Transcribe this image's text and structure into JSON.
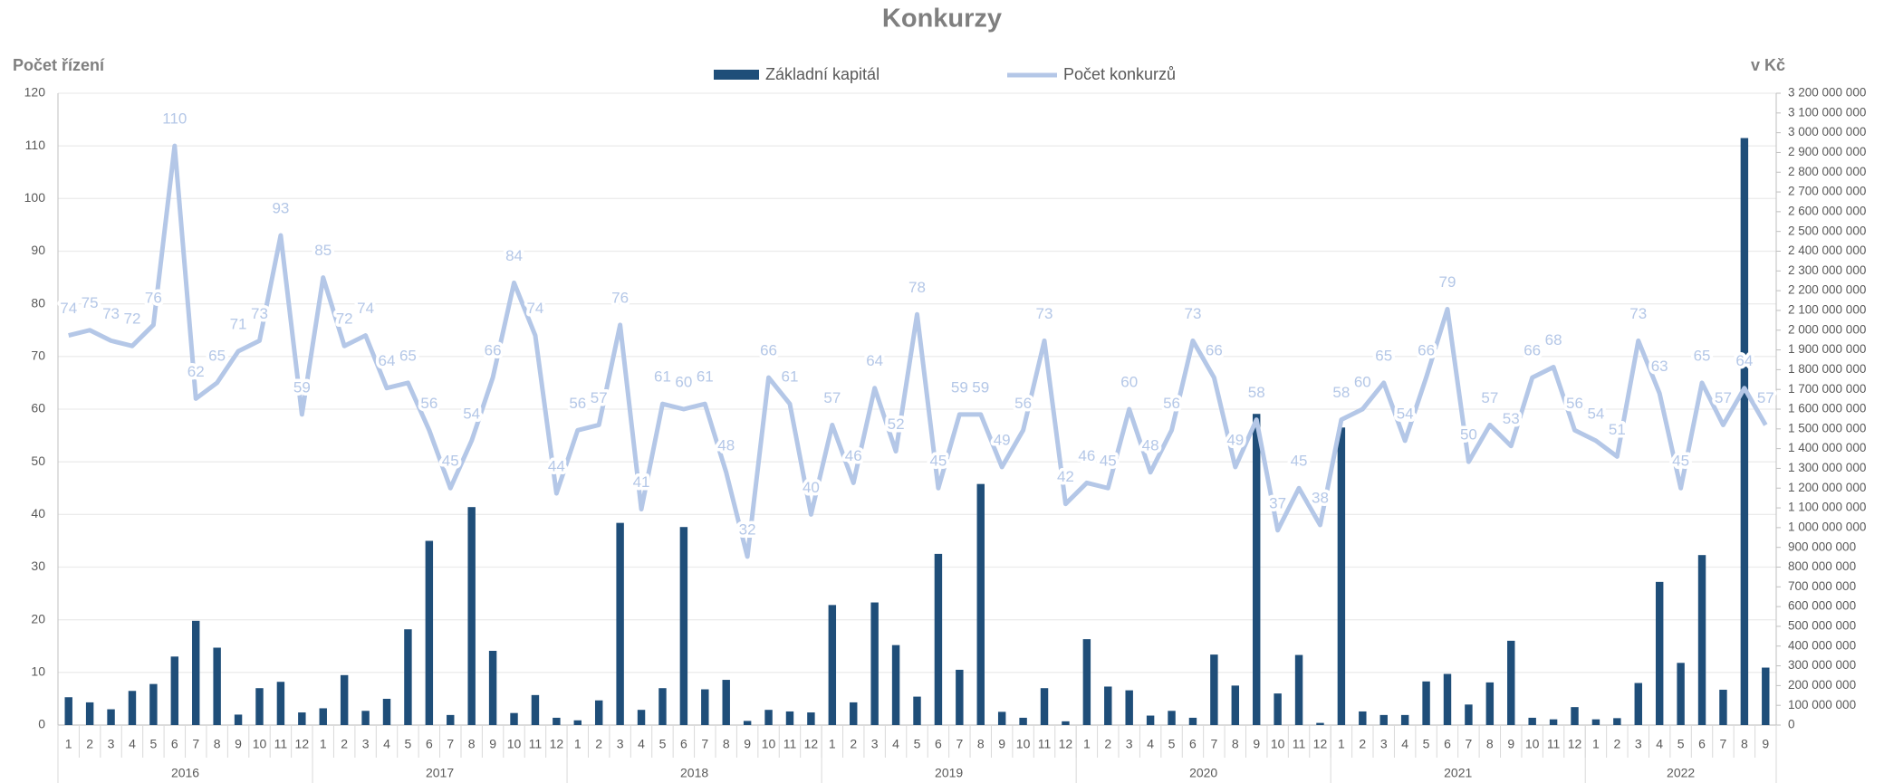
{
  "chart_data": {
    "type": "bar_line",
    "title": "Konkurzy",
    "y_label": "Počet řízení",
    "y2_label": "v Kč",
    "categories": [
      "1",
      "2",
      "3",
      "4",
      "5",
      "6",
      "7",
      "8",
      "9",
      "10",
      "11",
      "12",
      "1",
      "2",
      "3",
      "4",
      "5",
      "6",
      "7",
      "8",
      "9",
      "10",
      "11",
      "12",
      "1",
      "2",
      "3",
      "4",
      "5",
      "6",
      "7",
      "8",
      "9",
      "10",
      "11",
      "12",
      "1",
      "2",
      "3",
      "4",
      "5",
      "6",
      "7",
      "8",
      "9",
      "10",
      "11",
      "12",
      "1",
      "2",
      "3",
      "4",
      "5",
      "6",
      "7",
      "8",
      "9",
      "10",
      "11",
      "12",
      "1",
      "2",
      "3",
      "4",
      "5",
      "6",
      "7",
      "8",
      "9",
      "10",
      "11",
      "12",
      "1",
      "2",
      "3",
      "4",
      "5",
      "6",
      "7",
      "8",
      "9"
    ],
    "x_groups": [
      "2016",
      "2017",
      "2018",
      "2019",
      "2020",
      "2021",
      "2022"
    ],
    "series": [
      {
        "name": "Základní kapitál",
        "type": "bar",
        "axis": "y2",
        "color": "#1f4e79",
        "values": [
          141000000,
          115000000,
          80000000,
          173000000,
          208000000,
          347000000,
          528000000,
          392000000,
          53000000,
          187000000,
          219000000,
          64000000,
          85000000,
          253000000,
          72000000,
          133000000,
          485000000,
          933000000,
          51000000,
          1104000000,
          376000000,
          61000000,
          152000000,
          37000000,
          24000000,
          125000000,
          1024000000,
          77000000,
          187000000,
          1003000000,
          181000000,
          229000000,
          21000000,
          77000000,
          69000000,
          64000000,
          608000000,
          115000000,
          621000000,
          405000000,
          144000000,
          867000000,
          280000000,
          1221000000,
          67000000,
          37000000,
          187000000,
          19000000,
          435000000,
          195000000,
          176000000,
          48000000,
          72000000,
          37000000,
          357000000,
          200000000,
          1576000000,
          160000000,
          355000000,
          11000000,
          1507000000,
          69000000,
          51000000,
          51000000,
          221000000,
          259000000,
          104000000,
          216000000,
          427000000,
          37000000,
          29000000,
          91000000,
          29000000,
          35000000,
          213000000,
          725000000,
          315000000,
          861000000,
          179000000,
          2973000000,
          291000000
        ]
      },
      {
        "name": "Počet konkurzů",
        "type": "line",
        "color": "#b4c7e7",
        "values": [
          74,
          75,
          73,
          72,
          76,
          110,
          62,
          65,
          71,
          73,
          93,
          59,
          85,
          72,
          74,
          64,
          65,
          56,
          45,
          54,
          66,
          84,
          74,
          44,
          56,
          57,
          76,
          41,
          61,
          60,
          61,
          48,
          32,
          66,
          61,
          40,
          57,
          46,
          64,
          52,
          78,
          45,
          59,
          59,
          49,
          56,
          73,
          42,
          46,
          45,
          60,
          48,
          56,
          73,
          66,
          49,
          58,
          37,
          45,
          38,
          58,
          60,
          65,
          54,
          66,
          79,
          50,
          57,
          53,
          66,
          68,
          56,
          54,
          51,
          73,
          63,
          45,
          65,
          57,
          64,
          57
        ]
      }
    ],
    "ylim": [
      0,
      120
    ],
    "yticks": [
      0,
      10,
      20,
      30,
      40,
      50,
      60,
      70,
      80,
      90,
      100,
      110,
      120
    ],
    "y2lim": [
      0,
      3200000000
    ],
    "y2ticks": [
      0,
      {
        "value": 100000000,
        "label": "100 000 000"
      },
      {
        "value": 200000000,
        "label": "200 000 000"
      },
      {
        "value": 300000000,
        "label": "300 000 000"
      },
      {
        "value": 400000000,
        "label": "400 000 000"
      },
      {
        "value": 500000000,
        "label": "500 000 000"
      },
      {
        "value": 600000000,
        "label": "600 000 000"
      },
      {
        "value": 700000000,
        "label": "700 000 000"
      },
      {
        "value": 800000000,
        "label": "800 000 000"
      },
      {
        "value": 900000000,
        "label": "900 000 000"
      },
      {
        "value": 1000000000,
        "label": "1 000 000 000"
      },
      {
        "value": 1100000000,
        "label": "1 100 000 000"
      },
      {
        "value": 1200000000,
        "label": "1 200 000 000"
      },
      {
        "value": 1300000000,
        "label": "1 300 000 000"
      },
      {
        "value": 1400000000,
        "label": "1 400 000 000"
      },
      {
        "value": 1500000000,
        "label": "1 500 000 000"
      },
      {
        "value": 1600000000,
        "label": "1 600 000 000"
      },
      {
        "value": 1700000000,
        "label": "1 700 000 000"
      },
      {
        "value": 1800000000,
        "label": "1 800 000 000"
      },
      {
        "value": 1900000000,
        "label": "1 900 000 000"
      },
      {
        "value": 2000000000,
        "label": "2 000 000 000"
      },
      {
        "value": 2100000000,
        "label": "2 100 000 000"
      },
      {
        "value": 2200000000,
        "label": "2 200 000 000"
      },
      {
        "value": 2300000000,
        "label": "2 300 000 000"
      },
      {
        "value": 2400000000,
        "label": "2 400 000 000"
      },
      {
        "value": 2500000000,
        "label": "2 500 000 000"
      },
      {
        "value": 2600000000,
        "label": "2 600 000 000"
      },
      {
        "value": 2700000000,
        "label": "2 700 000 000"
      },
      {
        "value": 2800000000,
        "label": "2 800 000 000"
      },
      {
        "value": 2900000000,
        "label": "2 900 000 000"
      },
      {
        "value": 3000000000,
        "label": "3 000 000 000"
      },
      {
        "value": 3100000000,
        "label": "3 100 000 000"
      },
      {
        "value": 3200000000,
        "label": "3 200 000 000"
      }
    ],
    "grid": true
  }
}
